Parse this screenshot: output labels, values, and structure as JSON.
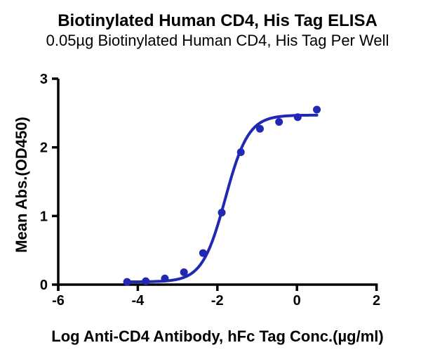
{
  "chart_data": {
    "type": "scatter",
    "title": "Biotinylated Human CD4, His Tag ELISA",
    "subtitle": "0.05µg Biotinylated Human CD4, His Tag Per Well",
    "xlabel": "Log Anti-CD4 Antibody, hFc Tag Conc.(µg/ml)",
    "ylabel": "Mean Abs.(OD450)",
    "x": [
      -4.27,
      -3.8,
      -3.32,
      -2.84,
      -2.36,
      -1.89,
      -1.41,
      -0.93,
      -0.45,
      0.02,
      0.5
    ],
    "y": [
      0.04,
      0.05,
      0.09,
      0.18,
      0.46,
      1.05,
      1.93,
      2.27,
      2.37,
      2.44,
      2.55
    ],
    "fit_curve": {
      "model": "4PL",
      "bottom": 0.04,
      "top": 2.47,
      "log_ec50": -1.8,
      "hill_slope": 1.5
    },
    "xlim": [
      -6,
      2
    ],
    "ylim": [
      0,
      3
    ],
    "x_ticks": [
      -6,
      -4,
      -2,
      0,
      2
    ],
    "y_ticks": [
      0,
      1,
      2,
      3
    ],
    "grid": false,
    "legend": "none",
    "series_color": "#2129b2",
    "axis_color": "#000000",
    "marker_shape": "circle"
  }
}
